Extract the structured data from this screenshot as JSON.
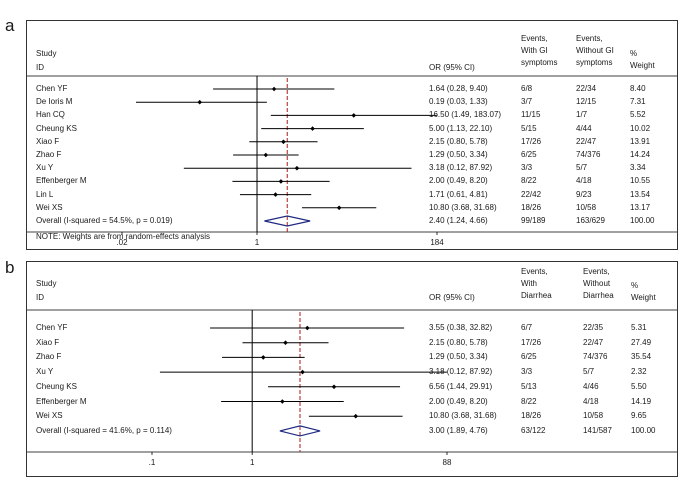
{
  "chart_data": [
    {
      "panel": "a",
      "type": "forest",
      "header": {
        "study": [
          "Study",
          "ID"
        ],
        "or_col": "OR (95% CI)",
        "col_events_gi": [
          "Events,",
          "With GI",
          "symptoms"
        ],
        "col_events_nogi": [
          "Events,",
          "Without GI",
          "symptoms"
        ],
        "col_weight": [
          "%",
          "Weight"
        ]
      },
      "studies": [
        {
          "name": "Chen YF",
          "or": 1.64,
          "lo": 0.28,
          "hi": 9.4,
          "ci_text": "1.64 (0.28, 9.40)",
          "ev1": "6/8",
          "ev2": "22/34",
          "weight": "8.40"
        },
        {
          "name": "De Ioris M",
          "or": 0.19,
          "lo": 0.03,
          "hi": 1.33,
          "ci_text": "0.19 (0.03, 1.33)",
          "ev1": "3/7",
          "ev2": "12/15",
          "weight": "7.31"
        },
        {
          "name": "Han CQ",
          "or": 16.5,
          "lo": 1.49,
          "hi": 183.07,
          "ci_text": "16.50 (1.49, 183.07)",
          "ev1": "11/15",
          "ev2": "1/7",
          "weight": "5.52"
        },
        {
          "name": "Cheung KS",
          "or": 5.0,
          "lo": 1.13,
          "hi": 22.1,
          "ci_text": "5.00 (1.13, 22.10)",
          "ev1": "5/15",
          "ev2": "4/44",
          "weight": "10.02"
        },
        {
          "name": "Xiao F",
          "or": 2.15,
          "lo": 0.8,
          "hi": 5.78,
          "ci_text": "2.15 (0.80, 5.78)",
          "ev1": "17/26",
          "ev2": "22/47",
          "weight": "13.91"
        },
        {
          "name": "Zhao F",
          "or": 1.29,
          "lo": 0.5,
          "hi": 3.34,
          "ci_text": "1.29 (0.50, 3.34)",
          "ev1": "6/25",
          "ev2": "74/376",
          "weight": "14.24"
        },
        {
          "name": "Xu Y",
          "or": 3.18,
          "lo": 0.12,
          "hi": 87.92,
          "ci_text": "3.18 (0.12, 87.92)",
          "ev1": "3/3",
          "ev2": "5/7",
          "weight": "3.34"
        },
        {
          "name": "Effenberger M",
          "or": 2.0,
          "lo": 0.49,
          "hi": 8.2,
          "ci_text": "2.00 (0.49, 8.20)",
          "ev1": "8/22",
          "ev2": "4/18",
          "weight": "10.55"
        },
        {
          "name": "Lin L",
          "or": 1.71,
          "lo": 0.61,
          "hi": 4.81,
          "ci_text": "1.71 (0.61, 4.81)",
          "ev1": "22/42",
          "ev2": "9/23",
          "weight": "13.54"
        },
        {
          "name": "Wei XS",
          "or": 10.8,
          "lo": 3.68,
          "hi": 31.68,
          "ci_text": "10.80 (3.68, 31.68)",
          "ev1": "18/26",
          "ev2": "10/58",
          "weight": "13.17"
        }
      ],
      "overall": {
        "label": "Overall  (I-squared = 54.5%, p = 0.019)",
        "or": 2.4,
        "lo": 1.24,
        "hi": 4.66,
        "ci_text": "2.40 (1.24, 4.66)",
        "ev1": "99/189",
        "ev2": "163/629",
        "weight": "100.00"
      },
      "note": "NOTE: Weights are from random-effects analysis",
      "axis": {
        "scale": "log",
        "min": 0.02,
        "max": 184,
        "ticks": [
          0.02,
          1,
          184
        ],
        "tick_labels": [
          ".02",
          "1",
          "184"
        ]
      }
    },
    {
      "panel": "b",
      "type": "forest",
      "header": {
        "study": [
          "Study",
          "ID"
        ],
        "or_col": "OR (95% CI)",
        "col_events_gi": [
          "Events,",
          "With",
          "Diarrhea"
        ],
        "col_events_nogi": [
          "Events,",
          "Without",
          "Diarrhea"
        ],
        "col_weight": [
          "%",
          "Weight"
        ]
      },
      "studies": [
        {
          "name": "Chen YF",
          "or": 3.55,
          "lo": 0.38,
          "hi": 32.82,
          "ci_text": "3.55 (0.38, 32.82)",
          "ev1": "6/7",
          "ev2": "22/35",
          "weight": "5.31"
        },
        {
          "name": "Xiao F",
          "or": 2.15,
          "lo": 0.8,
          "hi": 5.78,
          "ci_text": "2.15 (0.80, 5.78)",
          "ev1": "17/26",
          "ev2": "22/47",
          "weight": "27.49"
        },
        {
          "name": "Zhao F",
          "or": 1.29,
          "lo": 0.5,
          "hi": 3.34,
          "ci_text": "1.29 (0.50, 3.34)",
          "ev1": "6/25",
          "ev2": "74/376",
          "weight": "35.54"
        },
        {
          "name": "Xu Y",
          "or": 3.18,
          "lo": 0.12,
          "hi": 87.92,
          "ci_text": "3.18 (0.12, 87.92)",
          "ev1": "3/3",
          "ev2": "5/7",
          "weight": "2.32"
        },
        {
          "name": "Cheung KS",
          "or": 6.56,
          "lo": 1.44,
          "hi": 29.91,
          "ci_text": "6.56 (1.44, 29.91)",
          "ev1": "5/13",
          "ev2": "4/46",
          "weight": "5.50"
        },
        {
          "name": "Effenberger M",
          "or": 2.0,
          "lo": 0.49,
          "hi": 8.2,
          "ci_text": "2.00 (0.49, 8.20)",
          "ev1": "8/22",
          "ev2": "4/18",
          "weight": "14.19"
        },
        {
          "name": "Wei XS",
          "or": 10.8,
          "lo": 3.68,
          "hi": 31.68,
          "ci_text": "10.80 (3.68, 31.68)",
          "ev1": "18/26",
          "ev2": "10/58",
          "weight": "9.65"
        }
      ],
      "overall": {
        "label": "Overall  (I-squared = 41.6%, p = 0.114)",
        "or": 3.0,
        "lo": 1.89,
        "hi": 4.76,
        "ci_text": "3.00 (1.89, 4.76)",
        "ev1": "63/122",
        "ev2": "141/587",
        "weight": "100.00"
      },
      "note": "",
      "axis": {
        "scale": "log",
        "min": 0.1,
        "max": 88,
        "ticks": [
          0.1,
          1,
          88
        ],
        "tick_labels": [
          ".1",
          "1",
          "88"
        ]
      }
    }
  ],
  "colors": {
    "line": "#000000",
    "diamond": "#1f2a80",
    "dashed": "#b01818",
    "frame": "#333333"
  }
}
